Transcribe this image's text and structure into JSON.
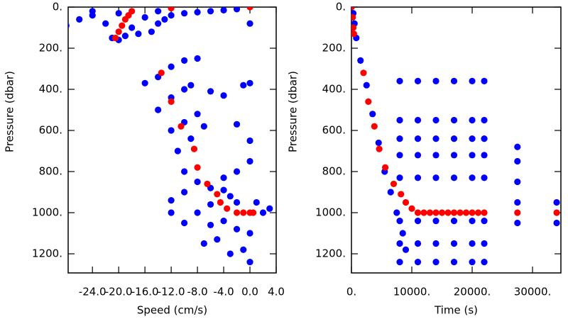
{
  "chart_data": [
    {
      "type": "scatter",
      "xlabel": "Speed (cm/s)",
      "ylabel": "Pressure (dbar)",
      "xlim": [
        -27.7,
        4.0
      ],
      "ylim": [
        0,
        1293
      ],
      "y_inverted": true,
      "xticks": [
        {
          "value": -24,
          "label": "-24.0"
        },
        {
          "value": -20,
          "label": "-20.0"
        },
        {
          "value": -16,
          "label": "-16.0"
        },
        {
          "value": -12,
          "label": "-12.0"
        },
        {
          "value": -8,
          "label": "-8.0"
        },
        {
          "value": -4,
          "label": "-4.0"
        },
        {
          "value": 0,
          "label": "0.0"
        },
        {
          "value": 4,
          "label": "4.0"
        }
      ],
      "yticks": [
        {
          "value": 0,
          "label": "0."
        },
        {
          "value": 200,
          "label": "200."
        },
        {
          "value": 400,
          "label": "400."
        },
        {
          "value": 600,
          "label": "600."
        },
        {
          "value": 800,
          "label": "800."
        },
        {
          "value": 1000,
          "label": "1000."
        },
        {
          "value": 1200,
          "label": "1200."
        }
      ],
      "series": [
        {
          "color": "#0000ff",
          "x": [
            -28,
            -26,
            -24,
            -22,
            -21,
            -20,
            -19,
            -18,
            -17,
            -16,
            -15,
            -14,
            -13,
            -12,
            -10,
            -8,
            -6,
            -4,
            -2,
            -14,
            -20,
            -24,
            0,
            -16,
            -14,
            -12,
            -10,
            -8,
            -14,
            -12,
            -10,
            -9,
            -12,
            -10,
            -8,
            -11,
            -9,
            -7,
            -6,
            -4,
            0,
            -1,
            -10,
            -8,
            -6,
            -4,
            -2,
            0,
            -2,
            0,
            -12,
            -10,
            -8,
            -6,
            -4,
            -2,
            0,
            2,
            -7,
            -5,
            -3,
            -1,
            0,
            -10,
            -12,
            3,
            1,
            -3,
            -6,
            -4,
            -2
          ],
          "y": [
            90,
            60,
            40,
            80,
            150,
            160,
            140,
            100,
            130,
            50,
            120,
            80,
            60,
            40,
            30,
            25,
            20,
            15,
            10,
            20,
            30,
            20,
            80,
            370,
            340,
            290,
            260,
            250,
            500,
            440,
            400,
            380,
            600,
            560,
            520,
            700,
            640,
            580,
            410,
            430,
            370,
            380,
            800,
            850,
            880,
            830,
            800,
            650,
            570,
            750,
            940,
            900,
            1000,
            1060,
            1040,
            1080,
            1100,
            1000,
            1150,
            1130,
            1200,
            1180,
            1240,
            1050,
            1000,
            980,
            950,
            920,
            960,
            890,
            950
          ]
        },
        {
          "color": "#ff0000",
          "x": [
            -20.5,
            -20,
            -19.5,
            -19,
            -18.5,
            -18,
            -12,
            0,
            -13.5,
            -12,
            -10.5,
            -8.5,
            -8,
            -6.5,
            -5,
            -4.5,
            -3.5,
            -2,
            -1,
            0,
            0.5
          ],
          "y": [
            150,
            120,
            90,
            60,
            40,
            20,
            5,
            0,
            320,
            460,
            580,
            690,
            780,
            860,
            910,
            950,
            980,
            1000,
            1000,
            1000,
            1000
          ]
        }
      ]
    },
    {
      "type": "scatter",
      "xlabel": "Time (s)",
      "ylabel": "Pressure (dbar)",
      "xlim": [
        0,
        34700
      ],
      "ylim": [
        0,
        1293
      ],
      "y_inverted": true,
      "xticks": [
        {
          "value": 0,
          "label": "0."
        },
        {
          "value": 10000,
          "label": "10000."
        },
        {
          "value": 20000,
          "label": "20000."
        },
        {
          "value": 30000,
          "label": "30000."
        }
      ],
      "yticks": [
        {
          "value": 0,
          "label": "0."
        },
        {
          "value": 200,
          "label": "200."
        },
        {
          "value": 400,
          "label": "400."
        },
        {
          "value": 600,
          "label": "600."
        },
        {
          "value": 800,
          "label": "800."
        },
        {
          "value": 1000,
          "label": "1000."
        },
        {
          "value": 1200,
          "label": "1200."
        }
      ],
      "series": [
        {
          "color": "#0000ff",
          "x": [
            0,
            300,
            500,
            800,
            1500,
            2500,
            3500,
            4500,
            5500,
            6500,
            7500,
            8500,
            9000,
            8000,
            11000,
            14000,
            17000,
            20000,
            22000,
            8000,
            11000,
            14000,
            17000,
            20000,
            22000,
            8000,
            11000,
            14000,
            17000,
            20000,
            22000,
            8000,
            11000,
            14000,
            17000,
            20000,
            22000,
            8000,
            11000,
            14000,
            17000,
            20000,
            22000,
            8000,
            11000,
            14000,
            17000,
            20000,
            22000,
            8000,
            11000,
            14000,
            17000,
            20000,
            22000,
            8000,
            11000,
            14000,
            17000,
            20000,
            22000,
            27500,
            27500,
            27500,
            27500,
            27500,
            34000,
            34000
          ],
          "y": [
            0,
            30,
            80,
            150,
            260,
            380,
            520,
            660,
            800,
            900,
            1000,
            1100,
            1180,
            360,
            360,
            360,
            360,
            360,
            360,
            550,
            550,
            550,
            550,
            550,
            550,
            640,
            640,
            640,
            640,
            640,
            640,
            720,
            720,
            720,
            720,
            720,
            720,
            830,
            830,
            830,
            830,
            830,
            830,
            1040,
            1040,
            1040,
            1040,
            1040,
            1040,
            1150,
            1150,
            1150,
            1150,
            1150,
            1150,
            1240,
            1240,
            1240,
            1240,
            1240,
            1240,
            680,
            750,
            850,
            950,
            1050,
            950,
            1050
          ]
        },
        {
          "color": "#ff0000",
          "x": [
            0,
            200,
            300,
            400,
            2000,
            2800,
            3800,
            4600,
            5600,
            7000,
            8200,
            9000,
            10000,
            11000,
            12000,
            13000,
            14000,
            15000,
            16000,
            17000,
            18000,
            19000,
            20000,
            21000,
            22000,
            27500,
            34000
          ],
          "y": [
            0,
            50,
            100,
            130,
            320,
            460,
            580,
            690,
            780,
            860,
            910,
            950,
            980,
            1000,
            1000,
            1000,
            1000,
            1000,
            1000,
            1000,
            1000,
            1000,
            1000,
            1000,
            1000,
            1000,
            1000
          ]
        }
      ]
    }
  ]
}
